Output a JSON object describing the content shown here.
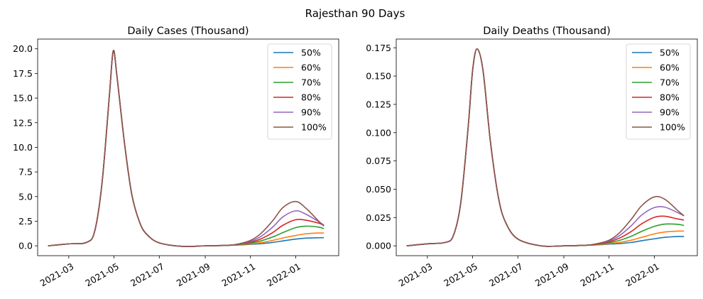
{
  "figure": {
    "suptitle": "Rajesthan 90 Days"
  },
  "chart_data": [
    {
      "type": "line",
      "title": "Daily Cases (Thousand)",
      "xlabel": "",
      "ylabel": "",
      "x_type": "date",
      "xlim": [
        "2021-01-18",
        "2022-02-28"
      ],
      "ylim": [
        -1.0,
        20.99
      ],
      "x_ticks": [
        "2021-03-01",
        "2021-05-01",
        "2021-07-01",
        "2021-09-01",
        "2021-11-01",
        "2022-01-01"
      ],
      "x_tick_labels": [
        "2021-03",
        "2021-05",
        "2021-07",
        "2021-09",
        "2021-11",
        "2022-01"
      ],
      "y_ticks": [
        0.0,
        2.5,
        5.0,
        7.5,
        10.0,
        12.5,
        15.0,
        17.5,
        20.0
      ],
      "y_tick_labels": [
        "0.0",
        "2.5",
        "5.0",
        "7.5",
        "10.0",
        "12.5",
        "15.0",
        "17.5",
        "20.0"
      ],
      "grid": false,
      "legend_position": "top-right",
      "x": [
        "2021-02-01",
        "2021-03-01",
        "2021-03-25",
        "2021-04-05",
        "2021-04-15",
        "2021-04-25",
        "2021-04-30",
        "2021-05-05",
        "2021-05-15",
        "2021-05-25",
        "2021-06-05",
        "2021-06-15",
        "2021-07-01",
        "2021-08-01",
        "2021-09-01",
        "2021-10-01",
        "2021-10-15",
        "2021-11-01",
        "2021-11-15",
        "2021-12-01",
        "2021-12-15",
        "2022-01-01",
        "2022-01-15",
        "2022-02-01",
        "2022-02-08"
      ],
      "series": [
        {
          "name": "50%",
          "color": "#1f77b4",
          "values": [
            0.0,
            0.2,
            0.35,
            1.5,
            6.5,
            15.5,
            19.8,
            17.2,
            10.5,
            5.2,
            2.3,
            1.1,
            0.3,
            -0.05,
            0.0,
            0.05,
            0.08,
            0.15,
            0.22,
            0.35,
            0.5,
            0.68,
            0.78,
            0.82,
            0.82
          ]
        },
        {
          "name": "60%",
          "color": "#ff7f0e",
          "values": [
            0.0,
            0.2,
            0.35,
            1.5,
            6.5,
            15.5,
            19.8,
            17.2,
            10.5,
            5.2,
            2.3,
            1.1,
            0.3,
            -0.05,
            0.0,
            0.05,
            0.1,
            0.2,
            0.32,
            0.55,
            0.8,
            1.05,
            1.22,
            1.3,
            1.3
          ]
        },
        {
          "name": "70%",
          "color": "#2ca02c",
          "values": [
            0.0,
            0.2,
            0.35,
            1.5,
            6.5,
            15.5,
            19.8,
            17.2,
            10.5,
            5.2,
            2.3,
            1.1,
            0.3,
            -0.05,
            0.0,
            0.05,
            0.12,
            0.28,
            0.5,
            0.9,
            1.35,
            1.85,
            2.0,
            1.9,
            1.75
          ]
        },
        {
          "name": "80%",
          "color": "#d62728",
          "values": [
            0.0,
            0.2,
            0.35,
            1.5,
            6.5,
            15.5,
            19.8,
            17.2,
            10.5,
            5.2,
            2.3,
            1.1,
            0.3,
            -0.05,
            0.0,
            0.05,
            0.14,
            0.36,
            0.7,
            1.35,
            2.1,
            2.65,
            2.6,
            2.3,
            2.1
          ]
        },
        {
          "name": "90%",
          "color": "#9467bd",
          "values": [
            0.0,
            0.2,
            0.35,
            1.5,
            6.5,
            15.5,
            19.8,
            17.2,
            10.5,
            5.2,
            2.3,
            1.1,
            0.3,
            -0.05,
            0.0,
            0.05,
            0.16,
            0.45,
            0.95,
            1.9,
            2.95,
            3.55,
            3.2,
            2.45,
            2.1
          ]
        },
        {
          "name": "100%",
          "color": "#8c564b",
          "values": [
            0.0,
            0.2,
            0.35,
            1.5,
            6.5,
            15.5,
            19.8,
            17.2,
            10.5,
            5.2,
            2.3,
            1.1,
            0.3,
            -0.05,
            0.0,
            0.05,
            0.18,
            0.55,
            1.25,
            2.55,
            3.9,
            4.5,
            3.8,
            2.5,
            2.0
          ]
        }
      ]
    },
    {
      "type": "line",
      "title": "Daily Deaths (Thousand)",
      "xlabel": "",
      "ylabel": "",
      "x_type": "date",
      "xlim": [
        "2021-01-18",
        "2022-02-28"
      ],
      "ylim": [
        -0.0087,
        0.1827
      ],
      "x_ticks": [
        "2021-03-01",
        "2021-05-01",
        "2021-07-01",
        "2021-09-01",
        "2021-11-01",
        "2022-01-01"
      ],
      "x_tick_labels": [
        "2021-03",
        "2021-05",
        "2021-07",
        "2021-09",
        "2021-11",
        "2022-01"
      ],
      "y_ticks": [
        0.0,
        0.025,
        0.05,
        0.075,
        0.1,
        0.125,
        0.15,
        0.175
      ],
      "y_tick_labels": [
        "0.000",
        "0.025",
        "0.050",
        "0.075",
        "0.100",
        "0.125",
        "0.150",
        "0.175"
      ],
      "grid": false,
      "legend_position": "top-right",
      "x": [
        "2021-02-01",
        "2021-03-01",
        "2021-03-25",
        "2021-04-05",
        "2021-04-15",
        "2021-04-25",
        "2021-05-01",
        "2021-05-07",
        "2021-05-15",
        "2021-05-25",
        "2021-06-05",
        "2021-06-15",
        "2021-07-01",
        "2021-08-01",
        "2021-09-01",
        "2021-10-01",
        "2021-10-15",
        "2021-11-01",
        "2021-11-15",
        "2021-12-01",
        "2021-12-15",
        "2022-01-01",
        "2022-01-15",
        "2022-02-01",
        "2022-02-10"
      ],
      "series": [
        {
          "name": "50%",
          "color": "#1f77b4",
          "values": [
            0.0,
            0.0018,
            0.003,
            0.009,
            0.038,
            0.105,
            0.155,
            0.174,
            0.155,
            0.092,
            0.042,
            0.02,
            0.006,
            0.0,
            0.0,
            0.0005,
            0.0008,
            0.0015,
            0.002,
            0.003,
            0.0045,
            0.0062,
            0.0075,
            0.0082,
            0.0083
          ]
        },
        {
          "name": "60%",
          "color": "#ff7f0e",
          "values": [
            0.0,
            0.0018,
            0.003,
            0.009,
            0.038,
            0.105,
            0.155,
            0.174,
            0.155,
            0.092,
            0.042,
            0.02,
            0.006,
            0.0,
            0.0,
            0.0005,
            0.001,
            0.002,
            0.003,
            0.005,
            0.0075,
            0.0105,
            0.0122,
            0.013,
            0.013
          ]
        },
        {
          "name": "70%",
          "color": "#2ca02c",
          "values": [
            0.0,
            0.0018,
            0.003,
            0.009,
            0.038,
            0.105,
            0.155,
            0.174,
            0.155,
            0.092,
            0.042,
            0.02,
            0.006,
            0.0,
            0.0,
            0.0005,
            0.0012,
            0.0027,
            0.0048,
            0.0085,
            0.0128,
            0.0172,
            0.0192,
            0.019,
            0.018
          ]
        },
        {
          "name": "80%",
          "color": "#d62728",
          "values": [
            0.0,
            0.0018,
            0.003,
            0.009,
            0.038,
            0.105,
            0.155,
            0.174,
            0.155,
            0.092,
            0.042,
            0.02,
            0.006,
            0.0,
            0.0,
            0.0005,
            0.0014,
            0.0035,
            0.0068,
            0.0127,
            0.0195,
            0.0252,
            0.0262,
            0.0238,
            0.0228
          ]
        },
        {
          "name": "90%",
          "color": "#9467bd",
          "values": [
            0.0,
            0.0018,
            0.003,
            0.009,
            0.038,
            0.105,
            0.155,
            0.174,
            0.155,
            0.092,
            0.042,
            0.02,
            0.006,
            0.0,
            0.0,
            0.0005,
            0.0016,
            0.0043,
            0.009,
            0.0178,
            0.0272,
            0.0338,
            0.0342,
            0.0295,
            0.0265
          ]
        },
        {
          "name": "100%",
          "color": "#8c564b",
          "values": [
            0.0,
            0.0018,
            0.003,
            0.009,
            0.038,
            0.105,
            0.155,
            0.174,
            0.155,
            0.092,
            0.042,
            0.02,
            0.006,
            0.0,
            0.0,
            0.0005,
            0.0018,
            0.005,
            0.0115,
            0.0235,
            0.0355,
            0.0432,
            0.0412,
            0.0315,
            0.0265
          ]
        }
      ]
    }
  ]
}
